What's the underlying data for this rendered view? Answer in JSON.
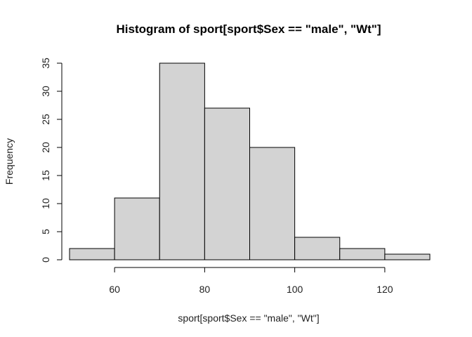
{
  "chart_data": {
    "type": "bar",
    "title": "Histogram of sport[sport$Sex == \"male\", \"Wt\"]",
    "xlabel": "sport[sport$Sex == \"male\", \"Wt\"]",
    "ylabel": "Frequency",
    "bins": [
      {
        "from": 50,
        "to": 60,
        "count": 2
      },
      {
        "from": 60,
        "to": 70,
        "count": 11
      },
      {
        "from": 70,
        "to": 80,
        "count": 35
      },
      {
        "from": 80,
        "to": 90,
        "count": 27
      },
      {
        "from": 90,
        "to": 100,
        "count": 20
      },
      {
        "from": 100,
        "to": 110,
        "count": 4
      },
      {
        "from": 110,
        "to": 120,
        "count": 2
      },
      {
        "from": 120,
        "to": 130,
        "count": 1
      }
    ],
    "xlim": [
      50,
      130
    ],
    "ylim": [
      0,
      35
    ],
    "x_ticks": [
      "60",
      "80",
      "100",
      "120"
    ],
    "y_ticks": [
      "0",
      "5",
      "10",
      "15",
      "20",
      "25",
      "30",
      "35"
    ],
    "grid": false,
    "legend": "none",
    "bar_color": "#d3d3d3",
    "edge_color": "#000000"
  }
}
